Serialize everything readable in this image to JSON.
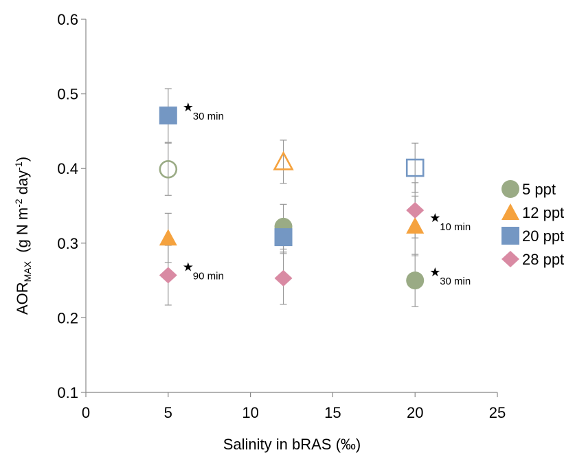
{
  "chart_data": {
    "type": "scatter",
    "xlabel": "Salinity in bRAS (‰)",
    "ylabel": {
      "main": "AOR",
      "sub": "MAX",
      "unit_pre": "  (g N m",
      "sup1": "-2",
      "unit_mid": " day",
      "sup2": "-1",
      "unit_post": ")"
    },
    "xlim": [
      0,
      25
    ],
    "ylim": [
      0.1,
      0.6
    ],
    "xticks": [
      "0",
      "5",
      "10",
      "15",
      "20",
      "25"
    ],
    "yticks": [
      "0.1",
      "0.2",
      "0.3",
      "0.4",
      "0.5",
      "0.6"
    ],
    "grid": false,
    "legend_position": "right",
    "series": [
      {
        "name": "5 ppt",
        "marker": "circle",
        "color": "#9aab85",
        "points": [
          {
            "x": 12,
            "y": 0.322,
            "err": 0.03
          },
          {
            "x": 20,
            "y": 0.25,
            "err": 0.035
          }
        ]
      },
      {
        "name": "12 ppt",
        "marker": "triangle",
        "color": "#f5a23e",
        "points": [
          {
            "x": 5,
            "y": 0.307,
            "err": 0.033
          },
          {
            "x": 20,
            "y": 0.323,
            "err": 0.04
          }
        ]
      },
      {
        "name": "20 ppt",
        "marker": "square",
        "color": "#7497c3",
        "points": [
          {
            "x": 5,
            "y": 0.471,
            "err": 0.036
          },
          {
            "x": 12,
            "y": 0.308,
            "err": 0.022
          }
        ]
      },
      {
        "name": "28 ppt",
        "marker": "diamond",
        "color": "#d98aa3",
        "points": [
          {
            "x": 5,
            "y": 0.257,
            "err": 0.04
          },
          {
            "x": 12,
            "y": 0.253,
            "err": 0.035
          },
          {
            "x": 20,
            "y": 0.344,
            "err": 0.037
          }
        ]
      }
    ],
    "hollow_points": [
      {
        "marker": "circle",
        "color": "#9aab85",
        "x": 5,
        "y": 0.399,
        "err": 0.035
      },
      {
        "marker": "triangle",
        "color": "#f5a23e",
        "x": 12,
        "y": 0.409,
        "err": 0.029
      },
      {
        "marker": "square",
        "color": "#7497c3",
        "x": 20,
        "y": 0.401,
        "err": 0.033
      }
    ],
    "annotations": [
      {
        "label": "30 min",
        "x": 5,
        "y": 0.471
      },
      {
        "label": "90 min",
        "x": 5,
        "y": 0.257
      },
      {
        "label": "10 min",
        "x": 20,
        "y": 0.323
      },
      {
        "label": "30 min",
        "x": 20,
        "y": 0.25
      }
    ]
  }
}
